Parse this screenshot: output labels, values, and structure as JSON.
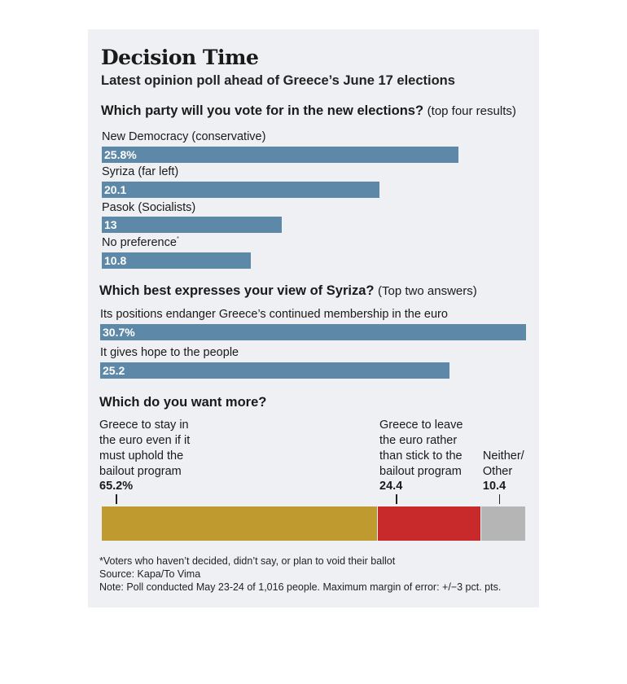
{
  "title": "Decision Time",
  "subtitle": "Latest opinion poll ahead of Greece’s June 17 elections",
  "chart_data": [
    {
      "type": "bar",
      "orientation": "horizontal",
      "title": "Which party will you vote for in the new elections?",
      "title_note": "(top four results)",
      "categories": [
        "New Democracy (conservative)",
        "Syriza (far left)",
        "Pasok (Socialists)",
        "No preference"
      ],
      "category_marks": [
        "",
        "",
        "",
        "*"
      ],
      "values": [
        25.8,
        20.1,
        13,
        10.8
      ],
      "value_labels": [
        "25.8%",
        "20.1",
        "13",
        "10.8"
      ],
      "xlim": [
        0,
        31
      ],
      "color": "#5e88a7"
    },
    {
      "type": "bar",
      "orientation": "horizontal",
      "title": "Which best expresses your view of Syriza?",
      "title_note": "(Top two answers)",
      "categories": [
        "Its positions endanger Greece’s continued membership in the euro",
        "It gives hope to the people"
      ],
      "values": [
        30.7,
        25.2
      ],
      "value_labels": [
        "30.7%",
        "25.2"
      ],
      "xlim": [
        0,
        31
      ],
      "color": "#5e88a7"
    },
    {
      "type": "bar",
      "orientation": "stacked-horizontal",
      "title": "Which do you want more?",
      "categories": [
        "Greece to stay in the euro even if it must uphold the bailout program",
        "Greece to leave the euro rather than stick to the bailout program",
        "Neither/ Other"
      ],
      "label_lines": [
        [
          "Greece to stay in",
          "the euro even if it",
          "must uphold the",
          "bailout program"
        ],
        [
          "Greece to leave",
          "the euro rather",
          "than stick to the",
          "bailout program"
        ],
        [
          "Neither/",
          "Other"
        ]
      ],
      "values": [
        65.2,
        24.4,
        10.4
      ],
      "value_labels": [
        "65.2%",
        "24.4",
        "10.4"
      ],
      "colors": [
        "#bf9a2e",
        "#c8292b",
        "#b5b5b5"
      ]
    }
  ],
  "footnotes": [
    "*Voters who haven’t decided, didn’t say, or plan to void their ballot",
    "Source: Kapa/To Vima",
    "Note: Poll conducted May 23-24 of 1,016 people. Maximum margin of error: +/−3 pct. pts."
  ]
}
